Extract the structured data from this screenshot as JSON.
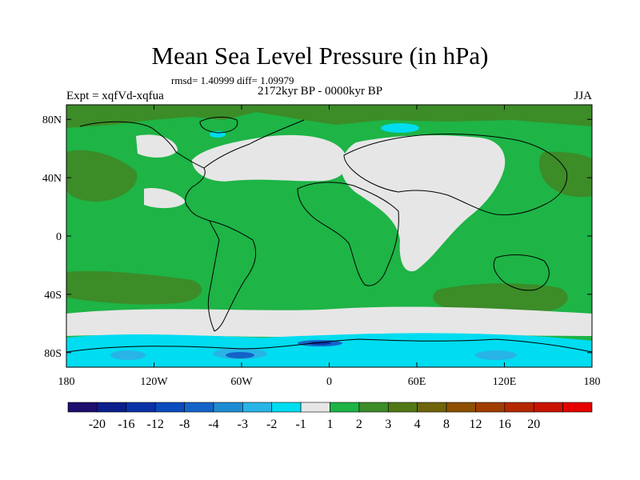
{
  "title": "Mean Sea Level Pressure (in hPa)",
  "stats": "rmsd= 1.40999 diff= 1.09979",
  "experiment": "Expt = xqfVd-xqfua",
  "period": "2172kyr BP - 0000kyr BP",
  "season": "JJA",
  "map": {
    "lon_range": [
      -180,
      180
    ],
    "lat_range": [
      -90,
      90
    ],
    "lon_ticks": [
      {
        "value": -180,
        "label": "180"
      },
      {
        "value": -120,
        "label": "120W"
      },
      {
        "value": -60,
        "label": "60W"
      },
      {
        "value": 0,
        "label": "0"
      },
      {
        "value": 60,
        "label": "60E"
      },
      {
        "value": 120,
        "label": "120E"
      },
      {
        "value": 180,
        "label": "180"
      }
    ],
    "lat_ticks": [
      {
        "value": 80,
        "label": "80N"
      },
      {
        "value": 40,
        "label": "40N"
      },
      {
        "value": 0,
        "label": "0"
      },
      {
        "value": -40,
        "label": "40S"
      },
      {
        "value": -80,
        "label": "80S"
      }
    ]
  },
  "colorbar": {
    "colors": [
      "#1e0f6e",
      "#0c1e8c",
      "#0a32a8",
      "#0a4bbe",
      "#1464c8",
      "#1e8cd2",
      "#28b4e6",
      "#00dcf0",
      "#e6e6e6",
      "#1eb446",
      "#3c8c28",
      "#507814",
      "#6e640a",
      "#8c5000",
      "#a03c00",
      "#b42800",
      "#c81400",
      "#e60000"
    ],
    "labels": [
      "-20",
      "-16",
      "-12",
      "-8",
      "-4",
      "-3",
      "-2",
      "-1",
      "1",
      "2",
      "3",
      "4",
      "8",
      "12",
      "16",
      "20"
    ]
  }
}
